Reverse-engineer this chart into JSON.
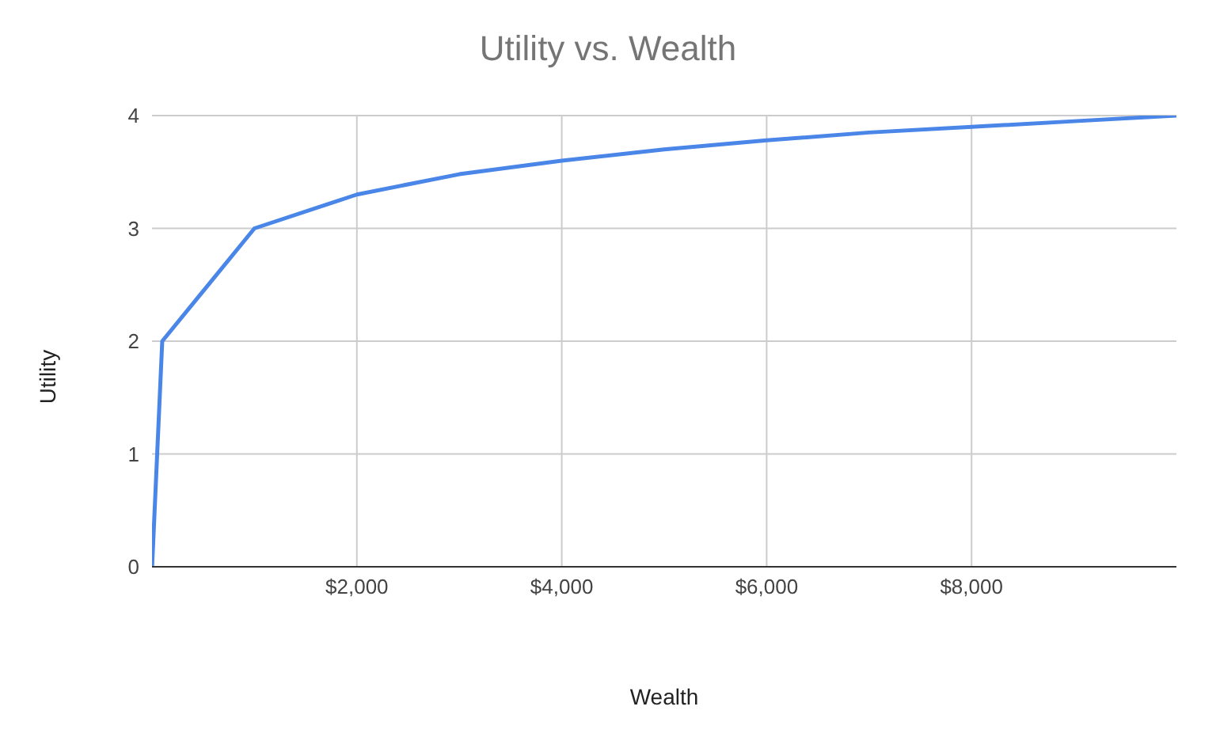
{
  "chart_data": {
    "type": "line",
    "title": "Utility vs. Wealth",
    "xlabel": "Wealth",
    "ylabel": "Utility",
    "x": [
      1,
      100,
      1000,
      2000,
      3000,
      4000,
      5000,
      6000,
      7000,
      8000,
      9000,
      10000
    ],
    "series": [
      {
        "color": "#4a86e8",
        "values": [
          0,
          2,
          3,
          3.3,
          3.48,
          3.6,
          3.7,
          3.78,
          3.85,
          3.9,
          3.95,
          4
        ]
      }
    ],
    "xlim": [
      0,
      10000
    ],
    "xticks": [
      {
        "value": 2000,
        "label": "$2,000"
      },
      {
        "value": 4000,
        "label": "$4,000"
      },
      {
        "value": 6000,
        "label": "$6,000"
      },
      {
        "value": 8000,
        "label": "$8,000"
      }
    ],
    "ylim": [
      0,
      4
    ],
    "yticks": [
      0,
      1,
      2,
      3,
      4
    ],
    "grid": true,
    "marker": "none",
    "line_style": "solid"
  }
}
